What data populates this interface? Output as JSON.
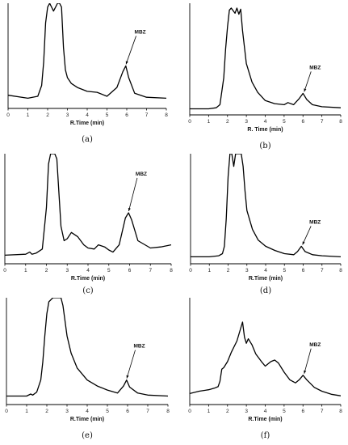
{
  "chart_data": [
    {
      "type": "line",
      "panel_label": "(a)",
      "xlabel": "R.Time (min)",
      "xlim": [
        0,
        8
      ],
      "xticks": [
        0,
        1,
        2,
        3,
        4,
        5,
        6,
        7,
        8
      ],
      "annotation": {
        "text": "MBZ",
        "x": 5.9
      },
      "x": [
        0,
        1.0,
        1.5,
        1.7,
        1.8,
        1.9,
        2.0,
        2.1,
        2.3,
        2.5,
        2.6,
        2.7,
        2.8,
        2.9,
        3.0,
        3.2,
        3.5,
        4.0,
        4.5,
        5.0,
        5.5,
        5.8,
        5.95,
        6.1,
        6.4,
        7.0,
        8.0
      ],
      "y": [
        6,
        3,
        5,
        16,
        40,
        80,
        96,
        100,
        92,
        100,
        100,
        96,
        55,
        32,
        24,
        18,
        14,
        10,
        9,
        5,
        14,
        30,
        36,
        24,
        8,
        4,
        3
      ]
    },
    {
      "type": "line",
      "panel_label": "(b)",
      "xlabel": "R. Time (min)",
      "xlim": [
        0,
        8
      ],
      "xticks": [
        0,
        1,
        2,
        3,
        4,
        5,
        6,
        7,
        8
      ],
      "annotation": {
        "text": "MBZ",
        "x": 6.0
      },
      "x": [
        0,
        1.0,
        1.4,
        1.6,
        1.8,
        1.9,
        2.0,
        2.1,
        2.2,
        2.4,
        2.5,
        2.6,
        2.7,
        2.8,
        3.0,
        3.3,
        3.6,
        4.0,
        4.5,
        5.0,
        5.2,
        5.5,
        5.8,
        6.0,
        6.2,
        6.5,
        7.0,
        8.0
      ],
      "y": [
        2,
        2,
        3,
        6,
        32,
        60,
        82,
        98,
        100,
        95,
        100,
        94,
        99,
        78,
        46,
        28,
        18,
        10,
        7,
        6,
        8,
        6,
        12,
        17,
        11,
        6,
        4,
        3
      ]
    },
    {
      "type": "line",
      "panel_label": "(c)",
      "xlabel": "R.Time (min)",
      "xlim": [
        0,
        8
      ],
      "xticks": [
        0,
        1,
        2,
        3,
        4,
        5,
        6,
        7,
        8
      ],
      "annotation": {
        "text": "MBZ",
        "x": 5.9
      },
      "x": [
        0,
        1.0,
        1.2,
        1.3,
        1.5,
        1.8,
        2.0,
        2.1,
        2.2,
        2.4,
        2.5,
        2.7,
        2.85,
        3.0,
        3.2,
        3.5,
        3.8,
        4.0,
        4.3,
        4.5,
        4.8,
        5.0,
        5.2,
        5.5,
        5.8,
        5.95,
        6.1,
        6.4,
        7.0,
        7.5,
        8.0
      ],
      "y": [
        2,
        3,
        5,
        3,
        4,
        8,
        48,
        90,
        100,
        100,
        95,
        30,
        16,
        18,
        24,
        20,
        12,
        9,
        8,
        12,
        10,
        7,
        5,
        12,
        38,
        43,
        36,
        16,
        9,
        10,
        12
      ]
    },
    {
      "type": "line",
      "panel_label": "(d)",
      "xlabel": "R.Time (min)",
      "xlim": [
        0,
        8
      ],
      "xticks": [
        0,
        1,
        2,
        3,
        4,
        5,
        6,
        7,
        8
      ],
      "annotation": {
        "text": "MBZ",
        "x": 5.9
      },
      "x": [
        0,
        1.0,
        1.5,
        1.7,
        1.8,
        1.9,
        2.0,
        2.1,
        2.2,
        2.3,
        2.4,
        2.5,
        2.6,
        2.7,
        2.8,
        2.9,
        3.0,
        3.3,
        3.6,
        4.0,
        4.5,
        5.0,
        5.5,
        5.7,
        5.9,
        6.1,
        6.5,
        7.0,
        8.0
      ],
      "y": [
        2,
        2,
        3,
        5,
        12,
        38,
        78,
        100,
        100,
        88,
        100,
        100,
        100,
        100,
        88,
        65,
        46,
        28,
        18,
        12,
        8,
        5,
        4,
        7,
        12,
        7,
        4,
        3,
        2
      ]
    },
    {
      "type": "line",
      "panel_label": "(e)",
      "xlabel": "R.Time (min)",
      "xlim": [
        0,
        8
      ],
      "xticks": [
        0,
        1,
        2,
        3,
        4,
        5,
        6,
        7,
        8
      ],
      "annotation": {
        "text": "MBZ",
        "x": 5.9
      },
      "x": [
        0,
        1.0,
        1.2,
        1.3,
        1.5,
        1.7,
        1.8,
        1.9,
        2.0,
        2.1,
        2.3,
        2.5,
        2.7,
        2.8,
        3.0,
        3.2,
        3.5,
        4.0,
        4.5,
        5.0,
        5.5,
        5.8,
        5.95,
        6.1,
        6.5,
        7.0,
        8.0
      ],
      "y": [
        2,
        2,
        4,
        3,
        6,
        18,
        36,
        62,
        84,
        96,
        100,
        100,
        100,
        92,
        62,
        45,
        30,
        18,
        12,
        8,
        5,
        12,
        18,
        11,
        5,
        3,
        2
      ]
    },
    {
      "type": "line",
      "panel_label": "(f)",
      "xlabel": "R.Time (min)",
      "xlim": [
        0,
        8
      ],
      "xticks": [
        0,
        1,
        2,
        3,
        4,
        5,
        6,
        7,
        8
      ],
      "annotation": {
        "text": "MBZ",
        "x": 6.0
      },
      "x": [
        0,
        0.5,
        1.0,
        1.3,
        1.5,
        1.6,
        1.7,
        1.8,
        2.0,
        2.2,
        2.5,
        2.8,
        2.9,
        3.0,
        3.1,
        3.3,
        3.5,
        3.8,
        4.0,
        4.3,
        4.5,
        4.7,
        5.0,
        5.3,
        5.6,
        5.8,
        6.0,
        6.2,
        6.6,
        7.0,
        7.5,
        8.0
      ],
      "y": [
        6,
        9,
        11,
        13,
        15,
        22,
        38,
        40,
        48,
        60,
        75,
        100,
        80,
        72,
        78,
        70,
        58,
        48,
        42,
        48,
        50,
        46,
        34,
        24,
        20,
        24,
        30,
        24,
        14,
        9,
        5,
        3
      ]
    }
  ]
}
